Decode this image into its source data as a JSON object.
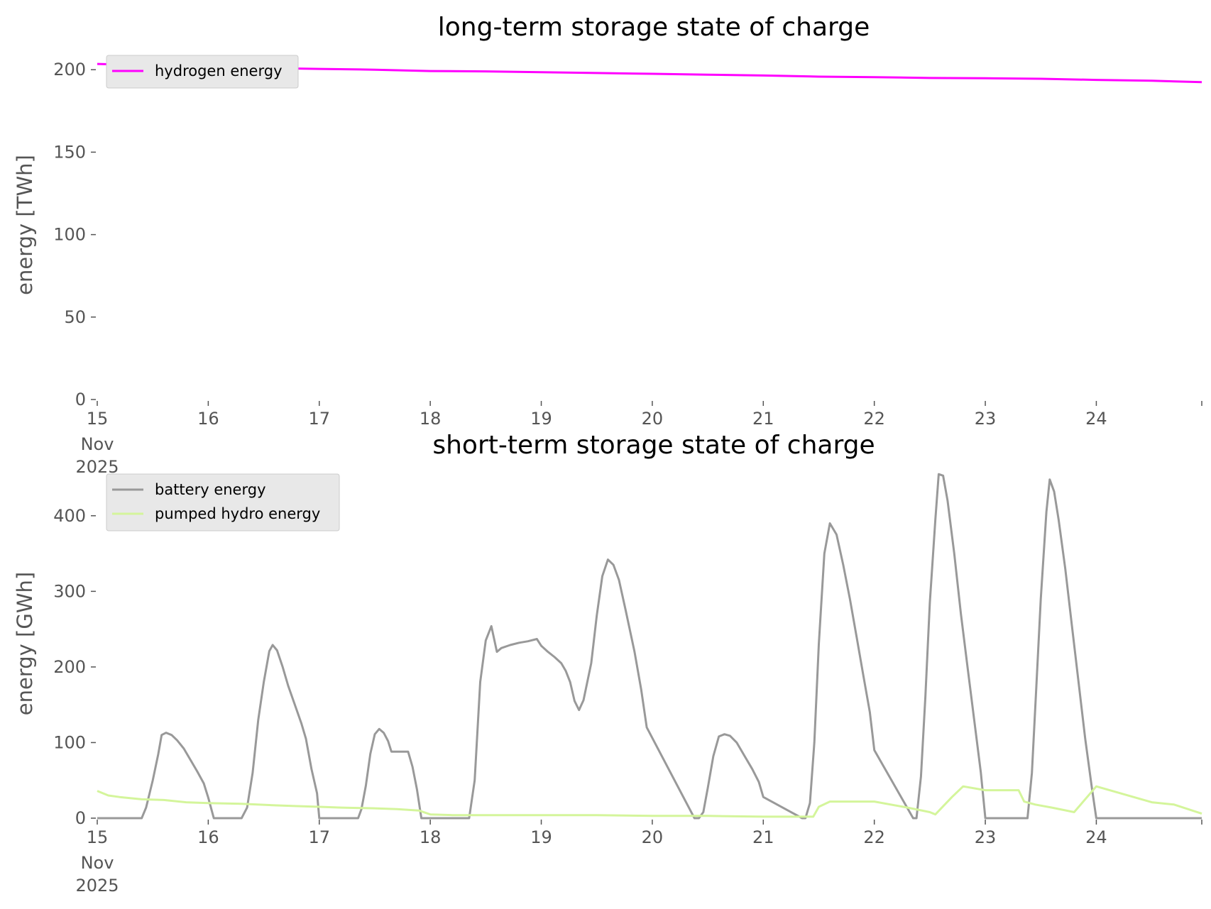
{
  "chart_data": [
    {
      "type": "line",
      "title": "long-term storage state of charge",
      "ylabel": "energy [TWh]",
      "xlabel": "",
      "x_ticks": [
        "15",
        "16",
        "17",
        "18",
        "19",
        "20",
        "21",
        "22",
        "23",
        "24"
      ],
      "x_tick_sub": [
        "Nov",
        "2025"
      ],
      "y_ticks": [
        "0",
        "50",
        "100",
        "150",
        "200"
      ],
      "xlim": [
        0,
        9.95
      ],
      "ylim": [
        0,
        210
      ],
      "grid": false,
      "legend": "top-left",
      "series": [
        {
          "name": "hydrogen energy",
          "color": "#ff00ff",
          "x": [
            0,
            0.5,
            1,
            1.5,
            2,
            2.5,
            3,
            3.5,
            4,
            4.5,
            5,
            5.5,
            6,
            6.5,
            7,
            7.5,
            8,
            8.5,
            9,
            9.5,
            9.95
          ],
          "y": [
            203.5,
            202.7,
            202,
            201,
            200.5,
            200,
            199.2,
            199,
            198.5,
            198,
            197.5,
            197,
            196.5,
            195.8,
            195.5,
            195,
            194.8,
            194.5,
            193.8,
            193.3,
            192.5
          ]
        }
      ]
    },
    {
      "type": "line",
      "title": "short-term storage state of charge",
      "ylabel": "energy [GWh]",
      "xlabel": "",
      "x_ticks": [
        "15",
        "16",
        "17",
        "18",
        "19",
        "20",
        "21",
        "22",
        "23",
        "24"
      ],
      "x_tick_sub": [
        "Nov",
        "2025"
      ],
      "y_ticks": [
        "0",
        "100",
        "200",
        "300",
        "400"
      ],
      "xlim": [
        0,
        9.95
      ],
      "ylim": [
        0,
        458
      ],
      "grid": false,
      "legend": "top-left",
      "series": [
        {
          "name": "battery energy",
          "color": "#999999",
          "x": [
            0,
            0.4,
            0.44,
            0.5,
            0.55,
            0.58,
            0.62,
            0.67,
            0.72,
            0.78,
            0.84,
            0.9,
            0.96,
            1.0,
            1.05,
            1.3,
            1.35,
            1.4,
            1.45,
            1.5,
            1.55,
            1.58,
            1.62,
            1.67,
            1.72,
            1.78,
            1.84,
            1.88,
            1.93,
            1.98,
            2.0,
            2.35,
            2.38,
            2.42,
            2.46,
            2.5,
            2.54,
            2.58,
            2.62,
            2.65,
            2.72,
            2.76,
            2.8,
            2.84,
            2.88,
            2.92,
            3.35,
            3.4,
            3.45,
            3.5,
            3.55,
            3.6,
            3.64,
            3.72,
            3.8,
            3.88,
            3.96,
            4.0,
            4.06,
            4.12,
            4.18,
            4.22,
            4.26,
            4.3,
            4.34,
            4.38,
            4.45,
            4.5,
            4.55,
            4.6,
            4.65,
            4.7,
            4.76,
            4.84,
            4.9,
            4.95,
            5.38,
            5.42,
            5.46,
            5.5,
            5.55,
            5.6,
            5.65,
            5.7,
            5.76,
            5.84,
            5.9,
            5.96,
            6.0,
            6.35,
            6.38,
            6.42,
            6.46,
            6.5,
            6.55,
            6.6,
            6.66,
            6.72,
            6.78,
            6.84,
            6.9,
            6.96,
            7.0,
            7.35,
            7.38,
            7.42,
            7.46,
            7.5,
            7.55,
            7.58,
            7.62,
            7.66,
            7.72,
            7.78,
            7.84,
            7.9,
            7.96,
            8.0,
            8.35,
            8.38,
            8.42,
            8.46,
            8.5,
            8.55,
            8.58,
            8.62,
            8.66,
            8.72,
            8.78,
            8.84,
            8.9,
            8.96,
            9.0,
            9.95
          ],
          "y": [
            0,
            0,
            14,
            50,
            85,
            110,
            113,
            110,
            103,
            92,
            77,
            62,
            46,
            27,
            0,
            0,
            14,
            60,
            130,
            180,
            221,
            229,
            222,
            200,
            175,
            150,
            125,
            105,
            65,
            33,
            0,
            0,
            12,
            43,
            85,
            111,
            118,
            113,
            102,
            88,
            88,
            88,
            88,
            68,
            38,
            0,
            0,
            50,
            180,
            235,
            254,
            220,
            225,
            229,
            232,
            234,
            237,
            228,
            220,
            213,
            205,
            195,
            180,
            155,
            143,
            156,
            205,
            268,
            320,
            342,
            335,
            315,
            275,
            220,
            170,
            120,
            0,
            0,
            8,
            40,
            82,
            108,
            111,
            109,
            100,
            80,
            65,
            48,
            28,
            0,
            0,
            20,
            100,
            230,
            350,
            390,
            375,
            335,
            290,
            240,
            190,
            140,
            90,
            0,
            0,
            55,
            160,
            285,
            395,
            455,
            453,
            420,
            350,
            270,
            200,
            130,
            60,
            0,
            0,
            0,
            60,
            175,
            290,
            405,
            448,
            432,
            395,
            330,
            255,
            180,
            105,
            40,
            0,
            0
          ]
        },
        {
          "name": "pumped hydro energy",
          "color": "#d4f59b",
          "x": [
            0,
            0.1,
            0.2,
            0.4,
            0.6,
            0.8,
            1.0,
            1.3,
            1.6,
            1.8,
            2.0,
            2.2,
            2.5,
            2.7,
            2.9,
            3.0,
            3.2,
            3.5,
            4.0,
            4.5,
            5.0,
            5.5,
            6.0,
            6.35,
            6.45,
            6.5,
            6.6,
            6.8,
            7.0,
            7.3,
            7.5,
            7.55,
            7.7,
            7.8,
            8.0,
            8.3,
            8.35,
            8.45,
            8.6,
            8.8,
            9.0,
            9.5,
            9.7,
            9.95
          ],
          "y": [
            36,
            30,
            28,
            25,
            24,
            21,
            20,
            19,
            17,
            16,
            15,
            14,
            13,
            12,
            10,
            5,
            4,
            4,
            4,
            4,
            3,
            3,
            2,
            2,
            2,
            15,
            22,
            22,
            22,
            14,
            8,
            5,
            28,
            42,
            37,
            37,
            22,
            18,
            14,
            8,
            42,
            21,
            18,
            6
          ]
        }
      ]
    }
  ]
}
